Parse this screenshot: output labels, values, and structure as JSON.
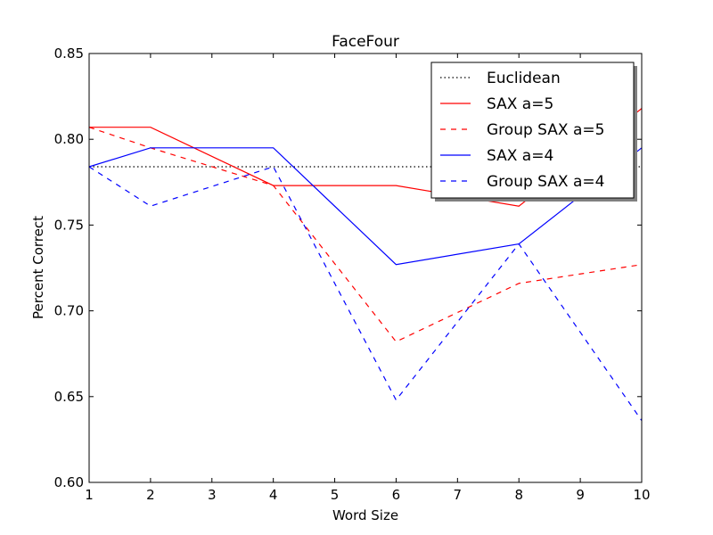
{
  "chart_data": {
    "type": "line",
    "title": "FaceFour",
    "xlabel": "Word Size",
    "ylabel": "Percent Correct",
    "xlim": [
      1,
      10
    ],
    "ylim": [
      0.6,
      0.85
    ],
    "xticks": [
      1,
      2,
      3,
      4,
      5,
      6,
      7,
      8,
      9,
      10
    ],
    "yticks": [
      "0.60",
      "0.65",
      "0.70",
      "0.75",
      "0.80",
      "0.85"
    ],
    "grid": false,
    "legend_position": "top-right",
    "series": [
      {
        "name": "Euclidean",
        "color": "#000000",
        "style": "dotted",
        "x": [
          1,
          10
        ],
        "y": [
          0.784,
          0.784
        ]
      },
      {
        "name": "SAX a=5",
        "color": "#ff0000",
        "style": "solid",
        "x": [
          1,
          2,
          4,
          6,
          8,
          10
        ],
        "y": [
          0.807,
          0.807,
          0.773,
          0.773,
          0.761,
          0.818
        ]
      },
      {
        "name": "Group SAX a=5",
        "color": "#ff0000",
        "style": "dashed",
        "x": [
          1,
          2,
          4,
          6,
          8,
          10
        ],
        "y": [
          0.807,
          0.795,
          0.773,
          0.682,
          0.716,
          0.727
        ]
      },
      {
        "name": "SAX a=4",
        "color": "#0000ff",
        "style": "solid",
        "x": [
          1,
          2,
          4,
          6,
          8,
          10
        ],
        "y": [
          0.784,
          0.795,
          0.795,
          0.727,
          0.739,
          0.795
        ]
      },
      {
        "name": "Group SAX a=4",
        "color": "#0000ff",
        "style": "dashed",
        "x": [
          1,
          2,
          4,
          6,
          8,
          10
        ],
        "y": [
          0.784,
          0.761,
          0.784,
          0.648,
          0.739,
          0.636
        ]
      }
    ]
  }
}
